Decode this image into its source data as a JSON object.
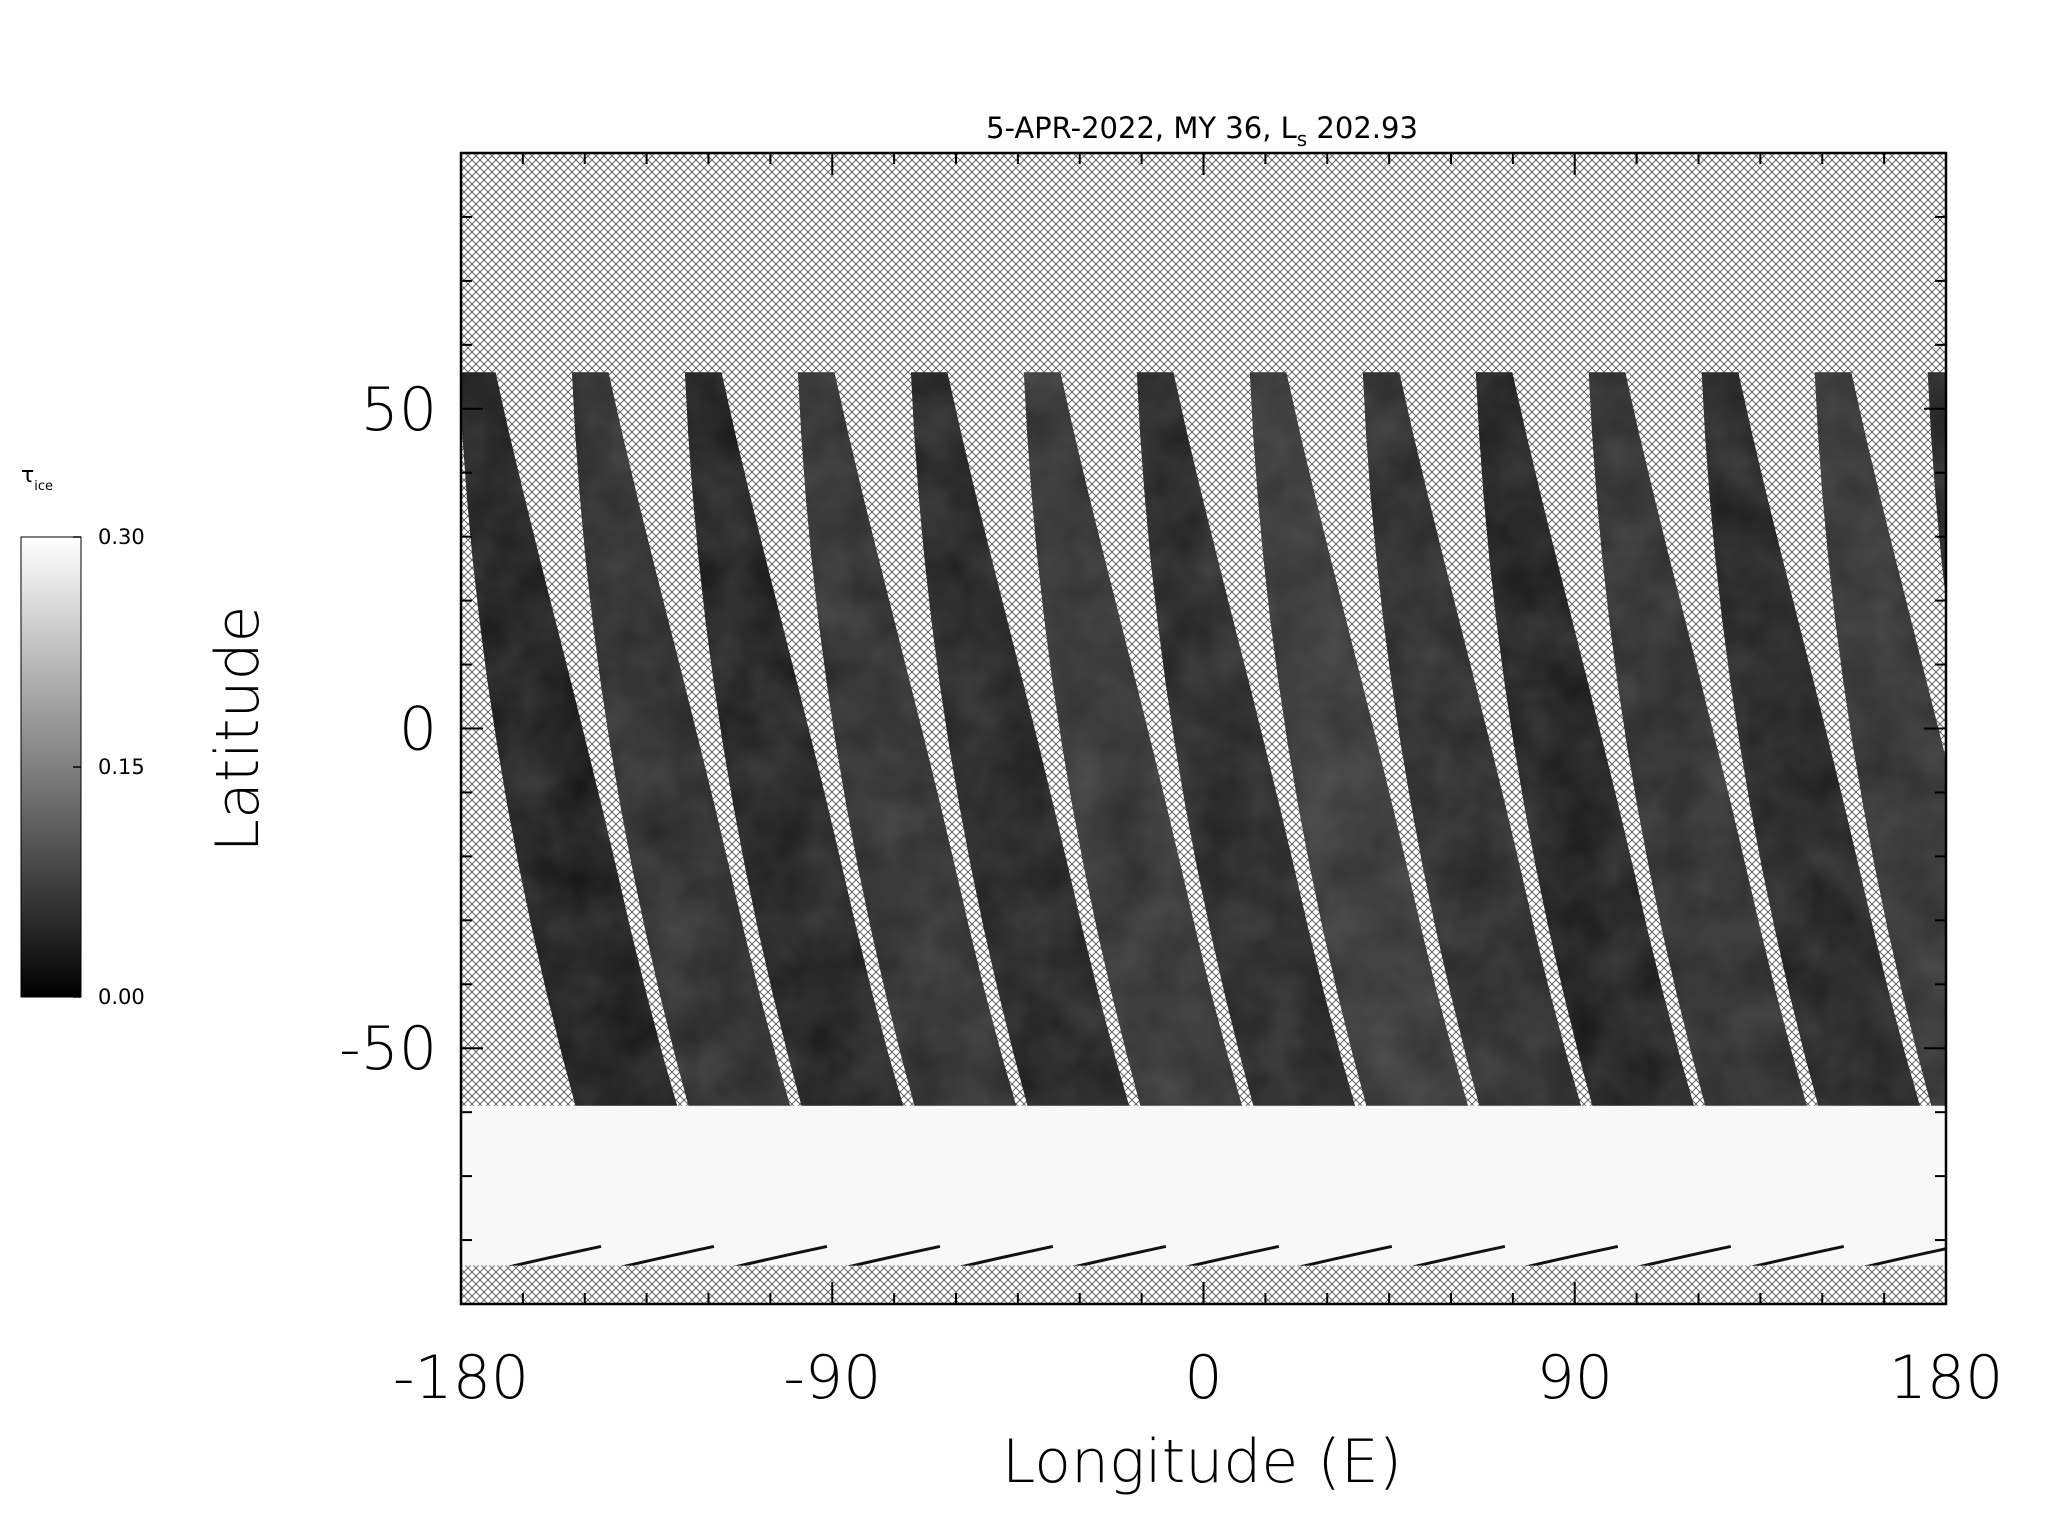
{
  "chart_data": {
    "type": "map",
    "title": "5-APR-2022, MY 36,  L",
    "title_subscript": "s",
    "title_end": " 202.93",
    "x_label": "Longitude (E)",
    "y_label": "Latitude",
    "xlim": [
      -180,
      180
    ],
    "ylim": [
      -90,
      90
    ],
    "xticks": [
      -180,
      -90,
      0,
      90,
      180
    ],
    "yticks": [
      -50,
      0,
      50
    ],
    "xminorticks": [
      -165,
      -150,
      -135,
      -120,
      -105,
      -75,
      -60,
      -45,
      -30,
      -15,
      15,
      30,
      45,
      60,
      75,
      105,
      120,
      135,
      150,
      165
    ],
    "yminorticks": [
      -80,
      -70,
      -60,
      -40,
      -30,
      -20,
      -10,
      10,
      20,
      30,
      40,
      60,
      70,
      80
    ],
    "colorbar": {
      "label": "τ",
      "label_subscript": "ice",
      "range": [
        0,
        0.3
      ],
      "ticks": [
        {
          "value": 0,
          "label": "0.00"
        },
        {
          "value": 0.15,
          "label": "0.15"
        },
        {
          "value": 0.3,
          "label": "0.30"
        }
      ]
    }
  }
}
